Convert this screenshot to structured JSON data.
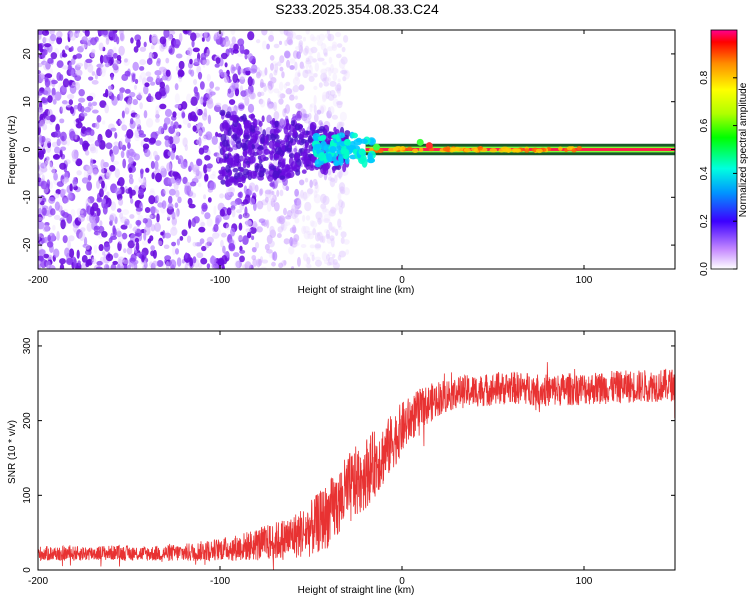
{
  "figure_title": "S233.2025.354.08.33.C24",
  "colors": {
    "snr_line": "#e83232",
    "scatter": "#6a0dde",
    "signal_band": "#ff1a4a",
    "axis": "#000000"
  },
  "chart_data": [
    {
      "type": "heatmap",
      "name": "spectrogram",
      "title": "",
      "xlabel": "Height of straight line (km)",
      "ylabel": "Frequency (Hz)",
      "xlim": [
        -200,
        150
      ],
      "ylim": [
        -25,
        25
      ],
      "xticks": [
        -200,
        -100,
        0,
        100
      ],
      "yticks": [
        -20,
        -10,
        0,
        10,
        20
      ],
      "colorbar": {
        "label": "Normalized spectral amplitude",
        "range": [
          0,
          1
        ],
        "ticks": [
          "0.0",
          "0.2",
          "0.4",
          "0.6",
          "0.8"
        ]
      },
      "description_points": {
        "noise_region_x": [
          -200,
          -45
        ],
        "signal_onset_x": -45,
        "signal_band_frequency": 0,
        "signal_band_x": [
          -20,
          150
        ],
        "bright_spots": [
          {
            "x": -38,
            "y": 0,
            "amp": 0.35
          },
          {
            "x": -30,
            "y": 1.5,
            "amp": 0.4
          },
          {
            "x": -22,
            "y": -0.5,
            "amp": 0.45
          },
          {
            "x": -14,
            "y": 0.5,
            "amp": 0.5
          },
          {
            "x": 10,
            "y": 1.5,
            "amp": 0.55
          },
          {
            "x": 15,
            "y": 0.8,
            "amp": 0.75
          }
        ]
      }
    },
    {
      "type": "line",
      "name": "snr",
      "title": "",
      "xlabel": "Height of straight line (km)",
      "ylabel": "SNR (10 * v/v)",
      "xlim": [
        -200,
        150
      ],
      "ylim": [
        0,
        320
      ],
      "xticks": [
        -200,
        -100,
        0,
        100
      ],
      "yticks": [
        0,
        100,
        200,
        300
      ],
      "series": [
        {
          "name": "SNR",
          "color": "#e83232",
          "x": [
            -200,
            -180,
            -160,
            -140,
            -120,
            -100,
            -90,
            -80,
            -70,
            -60,
            -50,
            -40,
            -30,
            -20,
            -10,
            0,
            10,
            20,
            30,
            40,
            50,
            60,
            70,
            80,
            90,
            100,
            110,
            120,
            130,
            140,
            150
          ],
          "y_median": [
            22,
            22,
            23,
            22,
            23,
            28,
            30,
            34,
            38,
            45,
            55,
            75,
            105,
            130,
            155,
            190,
            215,
            230,
            238,
            240,
            242,
            244,
            243,
            240,
            242,
            243,
            244,
            245,
            246,
            247,
            248
          ],
          "y_noise": [
            10,
            10,
            10,
            10,
            12,
            15,
            18,
            22,
            26,
            30,
            38,
            45,
            50,
            48,
            42,
            35,
            28,
            24,
            22,
            22,
            22,
            22,
            22,
            22,
            22,
            22,
            22,
            22,
            22,
            22,
            22
          ]
        }
      ]
    }
  ]
}
